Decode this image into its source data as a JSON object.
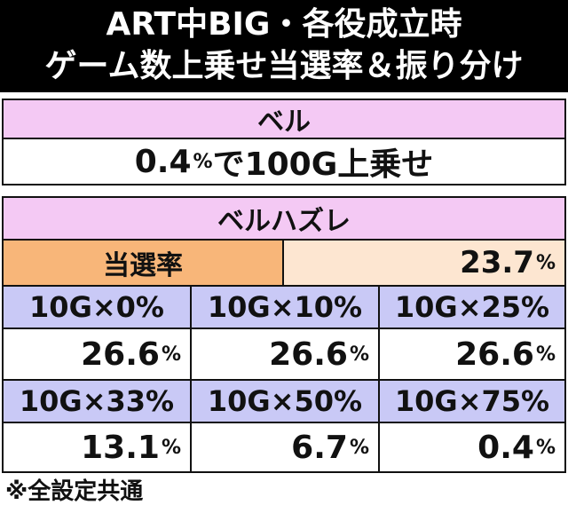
{
  "title": {
    "line1": "ART中BIG・各役成立時",
    "line2": "ゲーム数上乗せ当選率＆振り分け"
  },
  "bell": {
    "header": "ベル",
    "value": "0.4",
    "value_unit": "%",
    "value_suffix": "で100G上乗せ"
  },
  "bell_miss": {
    "header": "ベルハズレ",
    "rate_label": "当選率",
    "rate_value": "23.7",
    "rate_unit": "%",
    "distribution": [
      {
        "label": "10G×0%",
        "value": "26.6",
        "unit": "%"
      },
      {
        "label": "10G×10%",
        "value": "26.6",
        "unit": "%"
      },
      {
        "label": "10G×25%",
        "value": "26.6",
        "unit": "%"
      },
      {
        "label": "10G×33%",
        "value": "13.1",
        "unit": "%"
      },
      {
        "label": "10G×50%",
        "value": "6.7",
        "unit": "%"
      },
      {
        "label": "10G×75%",
        "value": "0.4",
        "unit": "%"
      }
    ]
  },
  "footnote": "※全設定共通"
}
